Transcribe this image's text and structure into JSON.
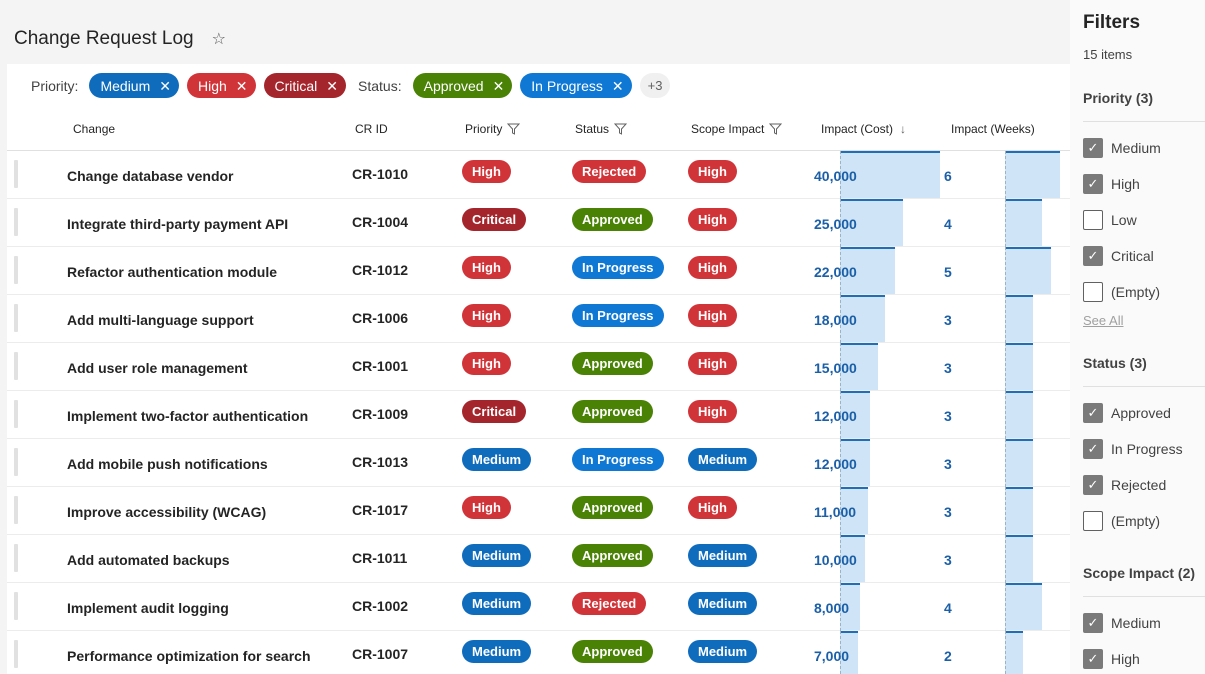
{
  "page": {
    "title": "Change Request Log"
  },
  "colors": {
    "high": "#d13438",
    "critical": "#a4262c",
    "medium": "#0f6cbd",
    "approved": "#498205",
    "in_progress": "#0f78d4",
    "rejected": "#d13438"
  },
  "chips": {
    "priority_label": "Priority:",
    "status_label": "Status:",
    "priority": [
      {
        "label": "Medium",
        "color": "#0f6cbd"
      },
      {
        "label": "High",
        "color": "#d13438"
      },
      {
        "label": "Critical",
        "color": "#a4262c"
      }
    ],
    "status": [
      {
        "label": "Approved",
        "color": "#498205"
      },
      {
        "label": "In Progress",
        "color": "#0f78d4"
      }
    ],
    "more": "+3"
  },
  "columns": {
    "change": "Change",
    "crid": "CR ID",
    "priority": "Priority",
    "status": "Status",
    "scope": "Scope Impact",
    "cost": "Impact (Cost)",
    "weeks": "Impact (Weeks)"
  },
  "cost_max": 40000,
  "weeks_max": 6,
  "rows": [
    {
      "change": "Change database vendor",
      "crid": "CR-1010",
      "priority": "High",
      "status": "Rejected",
      "scope": "High",
      "cost": 40000,
      "cost_label": "40,000",
      "weeks": 6,
      "weeks_label": "6"
    },
    {
      "change": "Integrate third-party payment API",
      "crid": "CR-1004",
      "priority": "Critical",
      "status": "Approved",
      "scope": "High",
      "cost": 25000,
      "cost_label": "25,000",
      "weeks": 4,
      "weeks_label": "4"
    },
    {
      "change": "Refactor authentication module",
      "crid": "CR-1012",
      "priority": "High",
      "status": "In Progress",
      "scope": "High",
      "cost": 22000,
      "cost_label": "22,000",
      "weeks": 5,
      "weeks_label": "5"
    },
    {
      "change": "Add multi-language support",
      "crid": "CR-1006",
      "priority": "High",
      "status": "In Progress",
      "scope": "High",
      "cost": 18000,
      "cost_label": "18,000",
      "weeks": 3,
      "weeks_label": "3"
    },
    {
      "change": "Add user role management",
      "crid": "CR-1001",
      "priority": "High",
      "status": "Approved",
      "scope": "High",
      "cost": 15000,
      "cost_label": "15,000",
      "weeks": 3,
      "weeks_label": "3"
    },
    {
      "change": "Implement two-factor authentication",
      "crid": "CR-1009",
      "priority": "Critical",
      "status": "Approved",
      "scope": "High",
      "cost": 12000,
      "cost_label": "12,000",
      "weeks": 3,
      "weeks_label": "3"
    },
    {
      "change": "Add mobile push notifications",
      "crid": "CR-1013",
      "priority": "Medium",
      "status": "In Progress",
      "scope": "Medium",
      "cost": 12000,
      "cost_label": "12,000",
      "weeks": 3,
      "weeks_label": "3"
    },
    {
      "change": "Improve accessibility (WCAG)",
      "crid": "CR-1017",
      "priority": "High",
      "status": "Approved",
      "scope": "High",
      "cost": 11000,
      "cost_label": "11,000",
      "weeks": 3,
      "weeks_label": "3"
    },
    {
      "change": "Add automated backups",
      "crid": "CR-1011",
      "priority": "Medium",
      "status": "Approved",
      "scope": "Medium",
      "cost": 10000,
      "cost_label": "10,000",
      "weeks": 3,
      "weeks_label": "3"
    },
    {
      "change": "Implement audit logging",
      "crid": "CR-1002",
      "priority": "Medium",
      "status": "Rejected",
      "scope": "Medium",
      "cost": 8000,
      "cost_label": "8,000",
      "weeks": 4,
      "weeks_label": "4"
    },
    {
      "change": "Performance optimization for search",
      "crid": "CR-1007",
      "priority": "Medium",
      "status": "Approved",
      "scope": "Medium",
      "cost": 7000,
      "cost_label": "7,000",
      "weeks": 2,
      "weeks_label": "2"
    }
  ],
  "filters": {
    "title": "Filters",
    "count": "15 items",
    "groups": [
      {
        "title": "Priority (3)",
        "options": [
          {
            "label": "Medium",
            "checked": true
          },
          {
            "label": "High",
            "checked": true
          },
          {
            "label": "Low",
            "checked": false
          },
          {
            "label": "Critical",
            "checked": true
          },
          {
            "label": "(Empty)",
            "checked": false
          }
        ],
        "see_all": "See All"
      },
      {
        "title": "Status (3)",
        "options": [
          {
            "label": "Approved",
            "checked": true
          },
          {
            "label": "In Progress",
            "checked": true
          },
          {
            "label": "Rejected",
            "checked": true
          },
          {
            "label": "(Empty)",
            "checked": false
          }
        ]
      },
      {
        "title": "Scope Impact (2)",
        "options": [
          {
            "label": "Medium",
            "checked": true
          },
          {
            "label": "High",
            "checked": true
          }
        ]
      }
    ]
  }
}
